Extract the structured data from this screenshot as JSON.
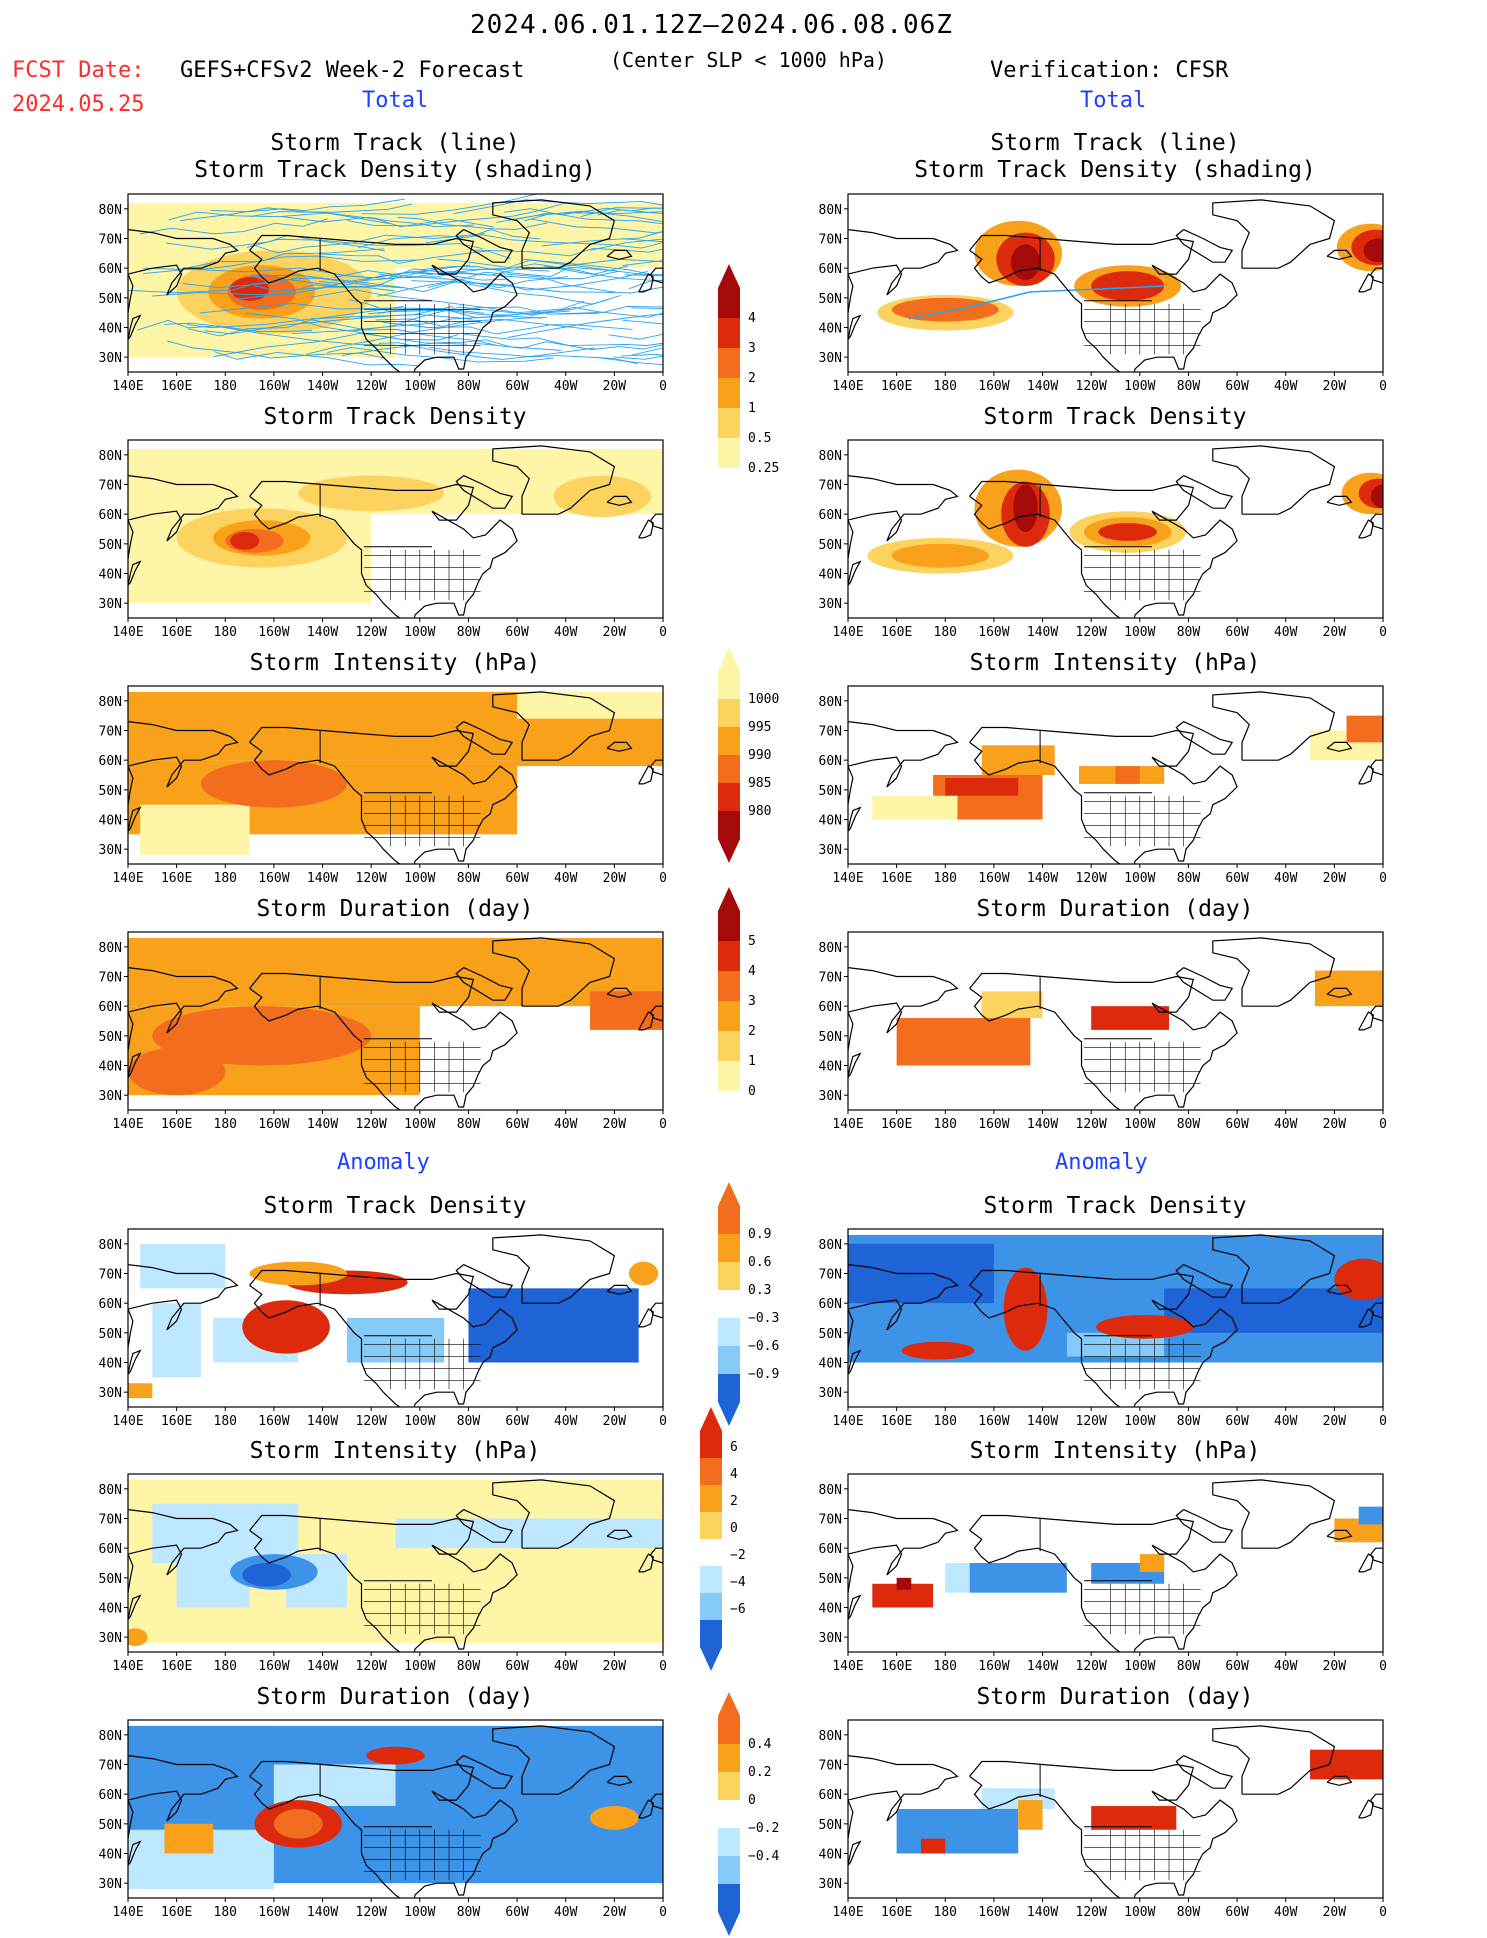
{
  "header": {
    "period": "2024.06.01.12Z–2024.06.08.06Z",
    "fcst_label": "FCST Date:",
    "model": "GEFS+CFSv2 Week-2 Forecast",
    "criterion": "(Center SLP < 1000 hPa)",
    "fcst_date": "2024.05.25",
    "verification": "Verification: CFSR",
    "section_total": "Total",
    "section_anomaly": "Anomaly"
  },
  "panel_titles": {
    "track_line": "Storm Track (line)",
    "track_density_shading": "Storm Track Density (shading)",
    "track_density": "Storm Track Density",
    "intensity": "Storm Intensity (hPa)",
    "duration": "Storm Duration (day)"
  },
  "axes": {
    "lon_labels": [
      "140E",
      "160E",
      "180",
      "160W",
      "140W",
      "120W",
      "100W",
      "80W",
      "60W",
      "40W",
      "20W",
      "0"
    ],
    "lat_labels": [
      "80N",
      "70N",
      "60N",
      "50N",
      "40N",
      "30N"
    ]
  },
  "colorbars": {
    "density_total": [
      "0.25",
      "0.5",
      "1",
      "2",
      "3",
      "4"
    ],
    "intensity_total": [
      "1000",
      "995",
      "990",
      "985",
      "980"
    ],
    "duration_total": [
      "0",
      "1",
      "2",
      "3",
      "4",
      "5"
    ],
    "density_anom": [
      "0.9",
      "0.6",
      "0.3",
      "−0.3",
      "−0.6",
      "−0.9"
    ],
    "intensity_anom": [
      "6",
      "4",
      "2",
      "0",
      "−2",
      "−4",
      "−6"
    ],
    "duration_anom": [
      "0.4",
      "0.2",
      "0",
      "−0.2",
      "−0.4"
    ]
  },
  "colors": {
    "yellow": "#fff5a6",
    "lightorange": "#fdd35f",
    "orange": "#f9a11b",
    "darkorange": "#f26d1e",
    "red": "#dd2a0d",
    "darkred": "#a40a0a",
    "lightblue": "#bde8ff",
    "midblue": "#86cbf7",
    "blue": "#3d93e8",
    "darkblue": "#1f64d7",
    "track": "#29a3f0"
  }
}
